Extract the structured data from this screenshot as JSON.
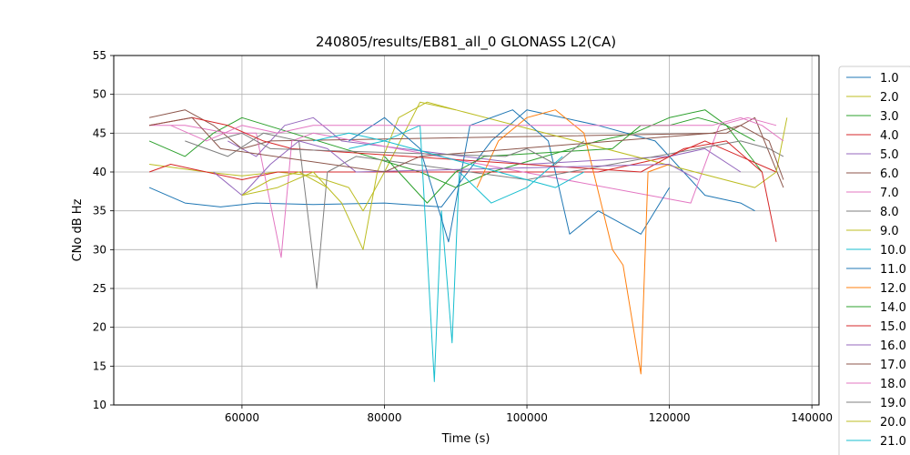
{
  "chart_data": {
    "type": "line",
    "title": "240805/results/EB81_all_0 GLONASS L2(CA)",
    "xlabel": "Time (s)",
    "ylabel": "CNo dB Hz",
    "xlim": [
      42000,
      141000
    ],
    "ylim": [
      10,
      55
    ],
    "xticks": [
      60000,
      80000,
      100000,
      120000,
      140000
    ],
    "xtick_labels": [
      "60000",
      "80000",
      "100000",
      "120000",
      "140000"
    ],
    "yticks": [
      10,
      15,
      20,
      25,
      30,
      35,
      40,
      45,
      50,
      55
    ],
    "ytick_labels": [
      "10",
      "15",
      "20",
      "25",
      "30",
      "35",
      "40",
      "45",
      "50",
      "55"
    ],
    "grid": true,
    "legend_position": "right, outside plot",
    "series": [
      {
        "name": "1.0",
        "color": "#1f77b4",
        "x": [
          47000,
          52000,
          57000,
          62000,
          70000,
          80000,
          88000,
          95000,
          100000,
          110000,
          118000,
          125000,
          130000,
          132000
        ],
        "values": [
          38,
          36,
          35.5,
          36,
          35.8,
          36,
          35.5,
          44,
          48,
          46,
          44,
          37,
          36,
          35
        ]
      },
      {
        "name": "2.0",
        "color": "#bcbd22",
        "x": [
          47000,
          55000,
          60000,
          65000,
          70000,
          75000,
          77000,
          80000,
          85000,
          90000
        ],
        "values": [
          41,
          40,
          39.5,
          40,
          39.5,
          38,
          35,
          40,
          49,
          48
        ]
      },
      {
        "name": "3.0",
        "color": "#2ca02c",
        "x": [
          47000,
          52000,
          56000,
          60000,
          85000,
          90000,
          95000,
          110000,
          115000,
          120000,
          125000,
          128000,
          133000
        ],
        "values": [
          44,
          42,
          45,
          47,
          40,
          38,
          40,
          44,
          45,
          47,
          48,
          46,
          40
        ]
      },
      {
        "name": "4.0",
        "color": "#d62728",
        "x": [
          47000,
          50000,
          55000,
          60000,
          65000,
          110000,
          115000,
          120000,
          125000,
          130000,
          135000
        ],
        "values": [
          40,
          41,
          40,
          39,
          40,
          40,
          41,
          42,
          44,
          42,
          40
        ]
      },
      {
        "name": "5.0",
        "color": "#9467bd",
        "x": [
          58000,
          62000,
          66000,
          70000,
          74000,
          100000,
          120000,
          125000,
          130000
        ],
        "values": [
          44,
          42,
          46,
          47,
          44,
          41,
          42,
          43,
          40
        ]
      },
      {
        "name": "6.0",
        "color": "#8c564b",
        "x": [
          47000,
          52000,
          56000,
          60000,
          64000,
          128000,
          132000,
          136000
        ],
        "values": [
          47,
          48,
          46,
          43,
          44,
          45,
          47,
          38
        ]
      },
      {
        "name": "7.0",
        "color": "#e377c2",
        "x": [
          47000,
          52000,
          58000,
          62000,
          65500,
          67000,
          70000,
          123000,
          127000,
          131000,
          135000
        ],
        "values": [
          46,
          46,
          45,
          45,
          29,
          44,
          45,
          36,
          46,
          47,
          46
        ]
      },
      {
        "name": "8.0",
        "color": "#7f7f7f",
        "x": [
          52000,
          58000,
          63000,
          68000,
          70500,
          72000,
          76000,
          100000,
          130000,
          134000,
          136000
        ],
        "values": [
          44,
          42,
          45,
          44,
          25,
          40,
          42,
          39,
          44,
          43,
          42
        ]
      },
      {
        "name": "9.0",
        "color": "#bcbd22",
        "x": [
          60000,
          65000,
          70000,
          74000,
          77000,
          79000,
          82000,
          86000,
          90000,
          132000,
          135000,
          136500
        ],
        "values": [
          37,
          38,
          40,
          36,
          30,
          40,
          47,
          49,
          48,
          38,
          40,
          47
        ]
      },
      {
        "name": "10.0",
        "color": "#17becf",
        "x": [
          70000,
          75000,
          80000,
          85000,
          87000,
          88000,
          89500,
          90500,
          95000,
          100000,
          105000
        ],
        "values": [
          44,
          45,
          44,
          46,
          13,
          35,
          18,
          40,
          36,
          38,
          42
        ]
      },
      {
        "name": "11.0",
        "color": "#1f77b4",
        "x": [
          75000,
          80000,
          85000,
          89000,
          92000,
          98000,
          103000,
          106000,
          110000,
          116000,
          120000
        ],
        "values": [
          44,
          47,
          43,
          31,
          46,
          48,
          44,
          32,
          35,
          32,
          38
        ]
      },
      {
        "name": "12.0",
        "color": "#ff7f0e",
        "x": [
          93000,
          96000,
          100000,
          104000,
          108000,
          112000,
          113500,
          116000,
          117000,
          120000
        ],
        "values": [
          38,
          44,
          47,
          48,
          45,
          30,
          28,
          14,
          40,
          41
        ]
      },
      {
        "name": "14.0",
        "color": "#2ca02c",
        "x": [
          80000,
          84000,
          86000,
          90000,
          94000,
          112000,
          116000,
          120000,
          124000,
          128000,
          132000
        ],
        "values": [
          42,
          38,
          36,
          40,
          42,
          43,
          46,
          46,
          47,
          46,
          44
        ]
      },
      {
        "name": "15.0",
        "color": "#d62728",
        "x": [
          47000,
          53000,
          58000,
          63000,
          67000,
          116000,
          122000,
          128000,
          133000,
          135000
        ],
        "values": [
          46,
          47,
          46,
          44,
          43,
          40,
          43,
          44,
          40,
          31
        ]
      },
      {
        "name": "16.0",
        "color": "#9467bd",
        "x": [
          56000,
          60000,
          64000,
          68000,
          72000,
          76000,
          120000,
          124000
        ],
        "values": [
          40,
          37,
          41,
          44,
          43,
          40,
          41,
          39
        ]
      },
      {
        "name": "17.0",
        "color": "#8c564b",
        "x": [
          47000,
          53000,
          57000,
          80000,
          85000,
          126000,
          130000,
          134000,
          136000
        ],
        "values": [
          46,
          47,
          43,
          40,
          42,
          45,
          46,
          44,
          39
        ]
      },
      {
        "name": "18.0",
        "color": "#e377c2",
        "x": [
          50000,
          55000,
          60000,
          65000,
          70000,
          126000,
          130000,
          133000,
          136000
        ],
        "values": [
          46,
          44,
          46,
          45,
          46,
          46,
          47,
          46,
          44
        ]
      },
      {
        "name": "19.0",
        "color": "#7f7f7f",
        "x": [
          56000,
          60000,
          64000,
          97000,
          100000,
          104000,
          108000
        ],
        "values": [
          44,
          45,
          43,
          42,
          43,
          41,
          44
        ]
      },
      {
        "name": "20.0",
        "color": "#bcbd22",
        "x": [
          60000,
          64000,
          68000,
          72000
        ],
        "values": [
          37,
          39,
          40,
          38
        ]
      },
      {
        "name": "21.0",
        "color": "#17becf",
        "x": [
          75000,
          80000,
          84000,
          104000,
          108000
        ],
        "values": [
          43,
          44,
          43,
          38,
          40
        ]
      }
    ]
  }
}
